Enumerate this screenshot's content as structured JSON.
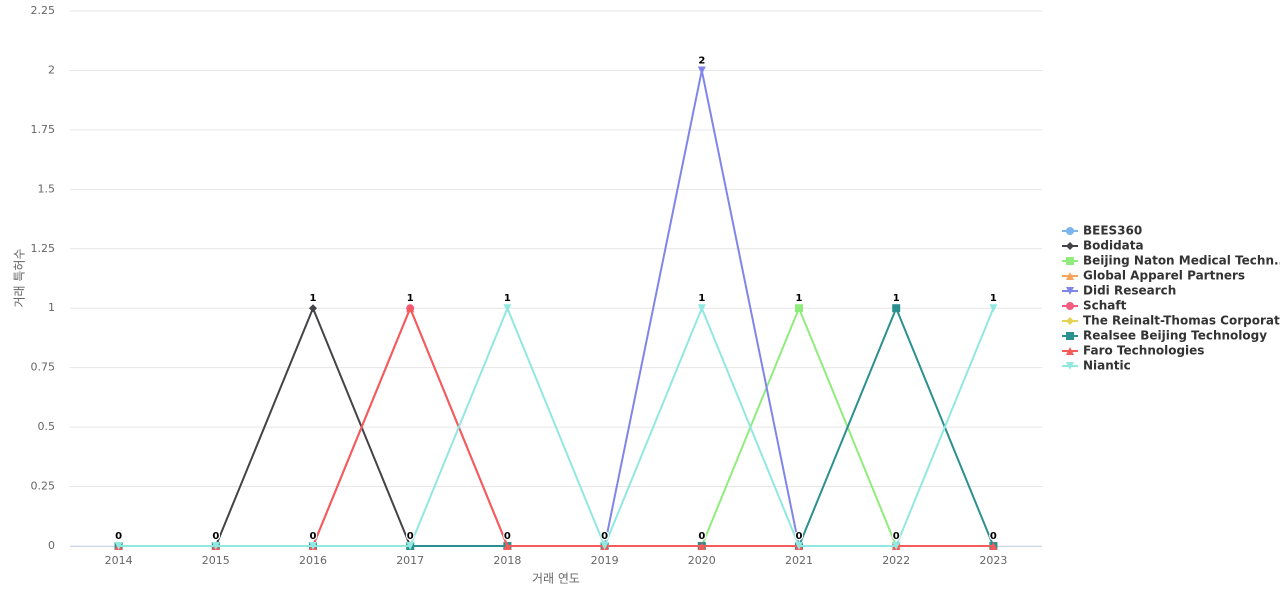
{
  "chart_data": {
    "type": "line",
    "x_label": "거래 연도",
    "y_label": "거래 특허수",
    "categories": [
      "2014",
      "2015",
      "2016",
      "2017",
      "2018",
      "2019",
      "2020",
      "2021",
      "2022",
      "2023"
    ],
    "ylim": [
      0,
      2.25
    ],
    "yticks": [
      0,
      0.25,
      0.5,
      0.75,
      1,
      1.25,
      1.5,
      1.75,
      2,
      2.25
    ],
    "grid": true,
    "legend": "right",
    "series": [
      {
        "name": "BEES360",
        "color": "#7cb5ec",
        "marker": "circle",
        "values": [
          0,
          0,
          0,
          0,
          0,
          0,
          0,
          0,
          0,
          0
        ]
      },
      {
        "name": "Bodidata",
        "color": "#434348",
        "marker": "diamond",
        "values": [
          0,
          0,
          1,
          0,
          0,
          0,
          0,
          0,
          0,
          0
        ]
      },
      {
        "name": "Beijing Naton Medical Techn...",
        "color": "#90ed7d",
        "marker": "square",
        "values": [
          0,
          0,
          0,
          0,
          0,
          0,
          0,
          1,
          0,
          0
        ]
      },
      {
        "name": "Global Apparel Partners",
        "color": "#f7a35c",
        "marker": "triangle",
        "values": [
          0,
          0,
          0,
          0,
          0,
          0,
          0,
          0,
          0,
          0
        ]
      },
      {
        "name": "Didi Research",
        "color": "#8085e9",
        "marker": "triangle-down",
        "values": [
          0,
          0,
          0,
          0,
          0,
          0,
          2,
          0,
          0,
          0
        ]
      },
      {
        "name": "Schaft",
        "color": "#f15c80",
        "marker": "circle",
        "values": [
          0,
          0,
          0,
          1,
          0,
          0,
          0,
          0,
          0,
          0
        ]
      },
      {
        "name": "The Reinalt-Thomas Corporat...",
        "color": "#e4d354",
        "marker": "diamond",
        "values": [
          0,
          0,
          0,
          0,
          0,
          0,
          0,
          0,
          0,
          0
        ]
      },
      {
        "name": "Realsee Beijing Technology",
        "color": "#2b908f",
        "marker": "square",
        "values": [
          0,
          0,
          0,
          0,
          0,
          0,
          0,
          0,
          1,
          0
        ]
      },
      {
        "name": "Faro Technologies",
        "color": "#f45b5b",
        "marker": "triangle",
        "values": [
          0,
          0,
          0,
          1,
          0,
          0,
          0,
          0,
          0,
          0
        ]
      },
      {
        "name": "Niantic",
        "color": "#91e8e1",
        "marker": "triangle-down",
        "values": [
          0,
          0,
          0,
          0,
          1,
          0,
          1,
          0,
          0,
          1
        ]
      }
    ]
  }
}
